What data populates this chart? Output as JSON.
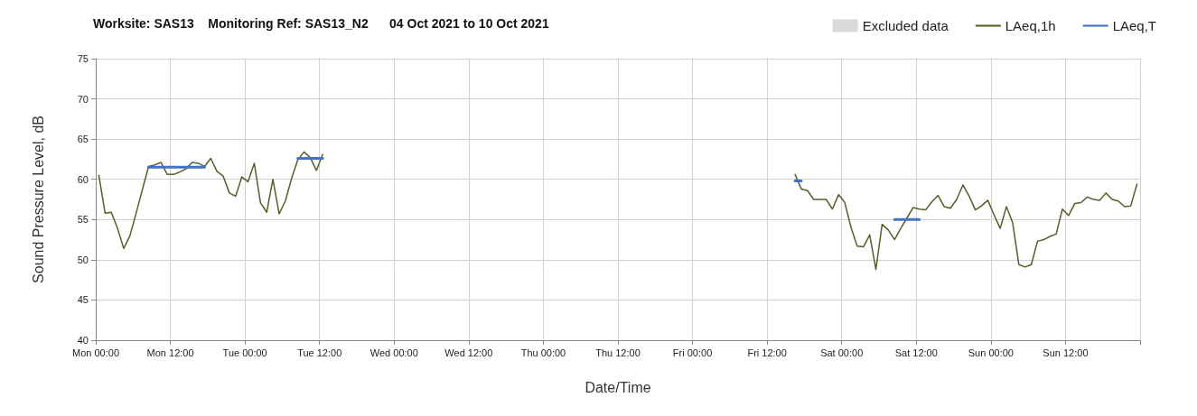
{
  "chart_data": {
    "type": "line",
    "title": "Worksite: SAS13    Monitoring Ref: SAS13_N2      04 Oct 2021 to 10 Oct 2021",
    "xlabel": "Date/Time",
    "ylabel": "Sound Pressure Level, dB",
    "xlim": [
      "2021-10-04T00:00",
      "2021-10-11T00:00"
    ],
    "ylim": [
      40,
      75
    ],
    "xticks": [
      {
        "value": "2021-10-04T00:00",
        "label": "Mon 00:00"
      },
      {
        "value": "2021-10-04T12:00",
        "label": "Mon 12:00"
      },
      {
        "value": "2021-10-05T00:00",
        "label": "Tue 00:00"
      },
      {
        "value": "2021-10-05T12:00",
        "label": "Tue 12:00"
      },
      {
        "value": "2021-10-06T00:00",
        "label": "Wed 00:00"
      },
      {
        "value": "2021-10-06T12:00",
        "label": "Wed 12:00"
      },
      {
        "value": "2021-10-07T00:00",
        "label": "Thu 00:00"
      },
      {
        "value": "2021-10-07T12:00",
        "label": "Thu 12:00"
      },
      {
        "value": "2021-10-08T00:00",
        "label": "Fri 00:00"
      },
      {
        "value": "2021-10-08T12:00",
        "label": "Fri 12:00"
      },
      {
        "value": "2021-10-09T00:00",
        "label": "Sat 00:00"
      },
      {
        "value": "2021-10-09T12:00",
        "label": "Sat 12:00"
      },
      {
        "value": "2021-10-10T00:00",
        "label": "Sun 00:00"
      },
      {
        "value": "2021-10-10T12:00",
        "label": "Sun 12:00"
      },
      {
        "value": "2021-10-11T00:00",
        "label": null
      }
    ],
    "yticks": [
      40,
      45,
      50,
      55,
      60,
      65,
      70,
      75
    ],
    "grid": true,
    "legend": "top right",
    "series": [
      {
        "name": "Excluded data",
        "type": "bar",
        "color": "#d9d9d9"
      },
      {
        "name": "LAeq,1h",
        "color": "#4f6228",
        "x": [
          "2021-10-04T00:30",
          "2021-10-04T01:30",
          "2021-10-04T02:30",
          "2021-10-04T03:30",
          "2021-10-04T04:30",
          "2021-10-04T05:30",
          "2021-10-04T06:30",
          "2021-10-04T07:30",
          "2021-10-04T08:30",
          "2021-10-04T09:30",
          "2021-10-04T10:30",
          "2021-10-04T11:30",
          "2021-10-04T12:30",
          "2021-10-04T13:30",
          "2021-10-04T14:30",
          "2021-10-04T15:30",
          "2021-10-04T16:30",
          "2021-10-04T17:30",
          "2021-10-04T18:30",
          "2021-10-04T19:30",
          "2021-10-04T20:30",
          "2021-10-04T21:30",
          "2021-10-04T22:30",
          "2021-10-04T23:30",
          "2021-10-05T00:30",
          "2021-10-05T01:30",
          "2021-10-05T02:30",
          "2021-10-05T03:30",
          "2021-10-05T04:30",
          "2021-10-05T05:30",
          "2021-10-05T06:30",
          "2021-10-05T07:30",
          "2021-10-05T08:30",
          "2021-10-05T09:30",
          "2021-10-05T10:30",
          "2021-10-05T11:30",
          "2021-10-05T12:30",
          "2021-10-07T02:30",
          "2021-10-08T16:30",
          "2021-10-08T17:30",
          "2021-10-08T18:30",
          "2021-10-08T19:30",
          "2021-10-08T20:30",
          "2021-10-08T21:30",
          "2021-10-08T22:30",
          "2021-10-08T23:30",
          "2021-10-09T00:30",
          "2021-10-09T01:30",
          "2021-10-09T02:30",
          "2021-10-09T03:30",
          "2021-10-09T04:30",
          "2021-10-09T05:30",
          "2021-10-09T06:30",
          "2021-10-09T07:30",
          "2021-10-09T08:30",
          "2021-10-09T09:30",
          "2021-10-09T10:30",
          "2021-10-09T11:30",
          "2021-10-09T12:30",
          "2021-10-09T13:30",
          "2021-10-09T14:30",
          "2021-10-09T15:30",
          "2021-10-09T16:30",
          "2021-10-09T17:30",
          "2021-10-09T18:30",
          "2021-10-09T19:30",
          "2021-10-09T20:30",
          "2021-10-09T21:30",
          "2021-10-09T22:30",
          "2021-10-09T23:30",
          "2021-10-10T00:30",
          "2021-10-10T01:30",
          "2021-10-10T02:30",
          "2021-10-10T03:30",
          "2021-10-10T04:30",
          "2021-10-10T05:30",
          "2021-10-10T06:30",
          "2021-10-10T07:30",
          "2021-10-10T08:30",
          "2021-10-10T09:30",
          "2021-10-10T10:30",
          "2021-10-10T11:30",
          "2021-10-10T12:30",
          "2021-10-10T13:30",
          "2021-10-10T14:30",
          "2021-10-10T15:30",
          "2021-10-10T16:30",
          "2021-10-10T17:30",
          "2021-10-10T18:30",
          "2021-10-10T19:30",
          "2021-10-10T20:30",
          "2021-10-10T21:30",
          "2021-10-10T22:30",
          "2021-10-10T23:30"
        ],
        "values": [
          60.5,
          55.8,
          55.9,
          53.9,
          51.4,
          53.0,
          55.8,
          58.7,
          61.6,
          61.8,
          62.1,
          60.6,
          60.6,
          60.9,
          61.3,
          62.1,
          62.0,
          61.6,
          62.6,
          61.0,
          60.4,
          58.3,
          57.9,
          60.3,
          59.7,
          62.0,
          57.1,
          55.9,
          60.0,
          55.7,
          57.3,
          60.1,
          62.4,
          63.4,
          62.7,
          61.1,
          63.1,
          null,
          60.6,
          58.8,
          58.6,
          57.5,
          57.5,
          57.5,
          56.3,
          58.1,
          57.1,
          54.0,
          51.7,
          51.6,
          53.1,
          48.8,
          54.4,
          53.7,
          52.5,
          53.9,
          55.2,
          56.5,
          56.3,
          56.2,
          57.2,
          58.0,
          56.6,
          56.4,
          57.5,
          59.3,
          57.9,
          56.2,
          56.7,
          57.4,
          55.6,
          53.9,
          56.6,
          54.6,
          49.4,
          49.1,
          49.4,
          52.3,
          52.5,
          52.9,
          53.2,
          56.3,
          55.5,
          57.0,
          57.1,
          57.8,
          57.5,
          57.4,
          58.3,
          57.5,
          57.3,
          56.6,
          56.7,
          59.4
        ]
      },
      {
        "name": "LAeq,T",
        "type": "line",
        "color": "#4472c4",
        "x": [
          "2021-10-04T08:30",
          "2021-10-04T17:30",
          "2021-10-05T01:00",
          "2021-10-05T08:30",
          "2021-10-05T12:30",
          "2021-10-07T02:30",
          "2021-10-08T16:30",
          "2021-10-08T17:30",
          "2021-10-09T01:00",
          "2021-10-09T08:30",
          "2021-10-09T12:30"
        ],
        "values": [
          61.5,
          61.5,
          null,
          62.6,
          62.6,
          null,
          59.8,
          59.8,
          null,
          55.0,
          55.0
        ]
      }
    ]
  }
}
